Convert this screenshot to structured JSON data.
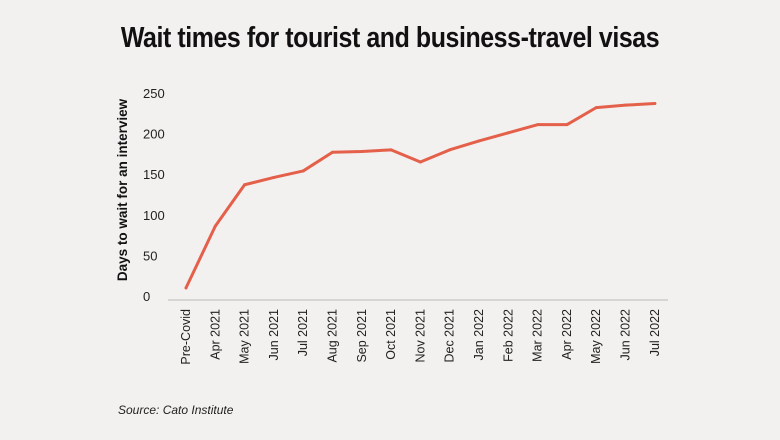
{
  "chart_data": {
    "type": "line",
    "title": "Wait times for tourist and business-travel visas",
    "xlabel": "",
    "ylabel": "Days to wait for an interview",
    "categories": [
      "Pre-Covid",
      "Apr 2021",
      "May 2021",
      "Jun 2021",
      "Jul 2021",
      "Aug 2021",
      "Sep 2021",
      "Oct 2021",
      "Nov 2021",
      "Dec 2021",
      "Jan 2022",
      "Feb 2022",
      "Mar 2022",
      "Apr 2022",
      "May 2022",
      "Jun 2022",
      "Jul 2022"
    ],
    "series": [
      {
        "values": [
          10,
          86,
          137,
          146,
          154,
          177,
          178,
          180,
          165,
          180,
          191,
          201,
          211,
          211,
          232,
          235,
          237
        ]
      }
    ],
    "ylim": [
      0,
      250
    ],
    "yticks": [
      0,
      50,
      100,
      150,
      200,
      250
    ],
    "grid": false,
    "legend": "none",
    "line_color": "#e4604a",
    "source": "Source: Cato Institute"
  }
}
